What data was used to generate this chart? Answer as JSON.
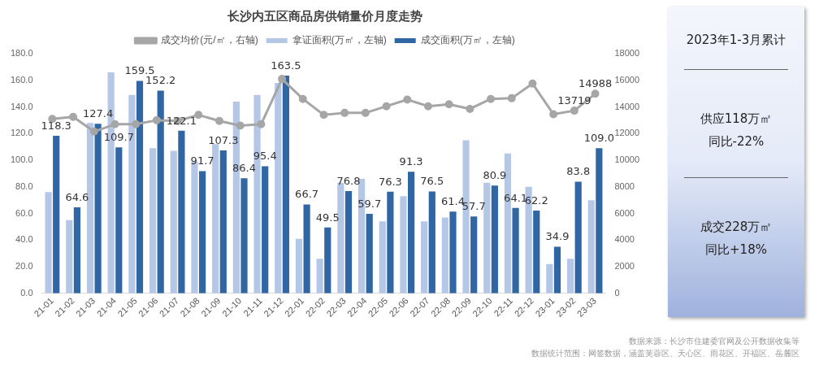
{
  "chart_data": [
    {
      "type": "bar",
      "title": "长沙内五区商品房供销量价月度走势",
      "categories": [
        "21-01",
        "21-02",
        "21-03",
        "21-04",
        "21-05",
        "21-06",
        "21-07",
        "21-08",
        "21-09",
        "21-10",
        "21-11",
        "21-12",
        "22-01",
        "22-02",
        "22-03",
        "22-04",
        "22-05",
        "22-06",
        "22-07",
        "22-08",
        "22-09",
        "22-10",
        "22-11",
        "22-12",
        "23-01",
        "23-02",
        "23-03"
      ],
      "series": [
        {
          "name": "拿证面积(万㎡，左轴)",
          "type": "bar",
          "color": "#b4c7e7",
          "values": [
            76,
            55,
            128,
            166,
            149,
            109,
            107,
            99,
            112,
            144,
            149,
            158,
            41,
            26,
            83,
            86,
            54,
            73,
            54,
            57,
            115,
            83,
            105,
            80,
            22,
            26,
            70
          ]
        },
        {
          "name": "成交面积(万㎡，左轴)",
          "type": "bar",
          "color": "#2f66a3",
          "values": [
            118.3,
            64.6,
            127.4,
            109.7,
            159.5,
            152.2,
            122.1,
            91.7,
            107.3,
            86.4,
            95.4,
            163.5,
            66.7,
            49.5,
            76.8,
            59.7,
            76.3,
            91.3,
            76.5,
            61.4,
            57.7,
            80.9,
            64.1,
            62.2,
            34.9,
            83.8,
            109.0
          ],
          "value_labels": [
            "118.3",
            "64.6",
            "127.4",
            "109.7",
            "159.5",
            "152.2",
            "122.1",
            "91.7",
            "107.3",
            "86.4",
            "95.4",
            "163.5",
            "66.7",
            "49.5",
            "76.8",
            "59.7",
            "76.3",
            "91.3",
            "76.5",
            "61.4",
            "57.7",
            "80.9",
            "64.1",
            "62.2",
            "34.9",
            "83.8",
            "109.0"
          ]
        },
        {
          "name": "成交均价(元/㎡，右轴)",
          "type": "line",
          "axis": "y2",
          "color": "#a6a6a6",
          "values": [
            13100,
            13250,
            12150,
            12700,
            12700,
            13000,
            12950,
            13400,
            12950,
            12600,
            12700,
            16100,
            14600,
            13400,
            13550,
            13550,
            14050,
            14550,
            14050,
            14200,
            13850,
            14600,
            14650,
            15750,
            13450,
            13719,
            14988
          ],
          "value_labels": [
            null,
            null,
            null,
            null,
            null,
            null,
            null,
            null,
            null,
            null,
            null,
            null,
            null,
            null,
            null,
            null,
            null,
            null,
            null,
            null,
            null,
            null,
            null,
            null,
            null,
            "13719",
            "14988"
          ]
        }
      ],
      "ylim": [
        0,
        180
      ],
      "yticks": [
        {
          "value": 0,
          "label": "0.0"
        },
        {
          "value": 20,
          "label": "20.0"
        },
        {
          "value": 40,
          "label": "40.0"
        },
        {
          "value": 60,
          "label": "60.0"
        },
        {
          "value": 80,
          "label": "80.0"
        },
        {
          "value": 100,
          "label": "100.0"
        },
        {
          "value": 120,
          "label": "120.0"
        },
        {
          "value": 140,
          "label": "140.0"
        },
        {
          "value": 160,
          "label": "160.0"
        },
        {
          "value": 180,
          "label": "180.0"
        }
      ],
      "y2lim": [
        0,
        18000
      ],
      "y2ticks": [
        0,
        2000,
        4000,
        6000,
        8000,
        10000,
        12000,
        14000,
        16000,
        18000
      ],
      "legend": "top",
      "marker": "circle",
      "grid": false,
      "annotations": [
        "数据来源：长沙市住建委官网及公开数据收集等",
        "数据统计范围：网签数据，涵盖芙蓉区、天心区、雨花区、开福区、岳麓区"
      ]
    },
    {
      "type": "other",
      "title": "2023年1-3月累计",
      "annotations": [
        "供应118万㎡",
        "同比-22%",
        "成交228万㎡",
        "同比+18%"
      ]
    }
  ]
}
